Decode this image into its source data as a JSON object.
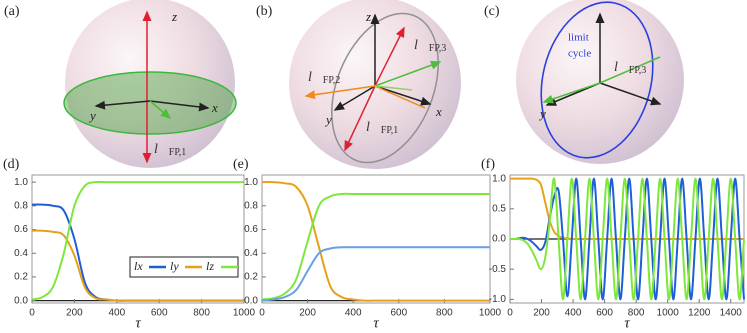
{
  "diagrams": [
    {
      "label": "(a)",
      "axes": {
        "x": "x",
        "y": "y",
        "z": "z"
      },
      "vectors": [
        {
          "symbol": "l⃗",
          "subscript": "FP,1"
        }
      ]
    },
    {
      "label": "(b)",
      "axes": {
        "x": "x",
        "y": "y",
        "z": "z"
      },
      "vectors": [
        {
          "symbol": "l⃗",
          "subscript": "FP,1"
        },
        {
          "symbol": "l⃗",
          "subscript": "FP,2"
        },
        {
          "symbol": "l⃗",
          "subscript": "FP,3"
        }
      ]
    },
    {
      "label": "(c)",
      "axes": {
        "y": "y"
      },
      "annotation": [
        "limit",
        "cycle"
      ],
      "vectors": [
        {
          "symbol": "l⃗",
          "subscript": "FP,3"
        }
      ]
    }
  ],
  "chart_data": [
    {
      "type": "line",
      "panel_label": "(d)",
      "x_label": "τ",
      "x": [
        0,
        50,
        100,
        150,
        200,
        250,
        300,
        350,
        400,
        450,
        500,
        550,
        600,
        650,
        700,
        750,
        800,
        850,
        900,
        950,
        1000
      ],
      "series": [
        {
          "name": "lx",
          "color": "#1f5fd6",
          "values": [
            0.81,
            0.81,
            0.8,
            0.76,
            0.52,
            0.15,
            0.03,
            0.01,
            0,
            0,
            0,
            0,
            0,
            0,
            0,
            0,
            0,
            0,
            0,
            0,
            0
          ]
        },
        {
          "name": "ly",
          "color": "#e8a01a",
          "values": [
            0.59,
            0.59,
            0.58,
            0.55,
            0.38,
            0.11,
            0.02,
            0.01,
            0,
            0,
            0,
            0,
            0,
            0,
            0,
            0,
            0,
            0,
            0,
            0,
            0
          ]
        },
        {
          "name": "lz",
          "color": "#7de83a",
          "values": [
            0.01,
            0.03,
            0.12,
            0.4,
            0.8,
            0.97,
            1,
            1,
            1,
            1,
            1,
            1,
            1,
            1,
            1,
            1,
            1,
            1,
            1,
            1,
            1
          ]
        }
      ],
      "xlim": [
        0,
        1000
      ],
      "xticks": [
        0,
        200,
        400,
        600,
        800,
        1000
      ],
      "ylim": [
        -0.02,
        1.06
      ],
      "yticks": [
        {
          "value": 0,
          "label": "0.0"
        },
        0.2,
        0.4,
        0.6,
        0.8,
        {
          "value": 1,
          "label": "1.0"
        }
      ],
      "legend": "bottom-right"
    },
    {
      "type": "line",
      "panel_label": "(e)",
      "x_label": "τ",
      "x": [
        0,
        50,
        100,
        150,
        200,
        250,
        300,
        350,
        400,
        450,
        500,
        550,
        600,
        650,
        700,
        750,
        800,
        850,
        900,
        950,
        1000
      ],
      "series": [
        {
          "color": "#e8a01a",
          "values": [
            1,
            1,
            0.99,
            0.96,
            0.8,
            0.45,
            0.12,
            0.03,
            0.01,
            0,
            0,
            0,
            0,
            0,
            0,
            0,
            0,
            0,
            0,
            0,
            0
          ]
        },
        {
          "color": "#7de83a",
          "values": [
            0.01,
            0.02,
            0.06,
            0.18,
            0.5,
            0.8,
            0.88,
            0.9,
            0.9,
            0.9,
            0.9,
            0.9,
            0.9,
            0.9,
            0.9,
            0.9,
            0.9,
            0.9,
            0.9,
            0.9,
            0.9
          ]
        },
        {
          "color": "#6a9ee8",
          "values": [
            0,
            0.01,
            0.03,
            0.09,
            0.25,
            0.4,
            0.44,
            0.45,
            0.45,
            0.45,
            0.45,
            0.45,
            0.45,
            0.45,
            0.45,
            0.45,
            0.45,
            0.45,
            0.45,
            0.45,
            0.45
          ]
        }
      ],
      "xlim": [
        0,
        1000
      ],
      "xticks": [
        0,
        200,
        400,
        600,
        800,
        1000
      ],
      "ylim": [
        -0.02,
        1.06
      ],
      "yticks": [
        {
          "value": 0,
          "label": "0.0"
        },
        0.2,
        0.4,
        0.6,
        0.8,
        {
          "value": 1,
          "label": "1.0"
        }
      ]
    },
    {
      "type": "line",
      "panel_label": "(f)",
      "x_label": "τ",
      "x": [
        0,
        28,
        56,
        84,
        112,
        140,
        168,
        196,
        224,
        252,
        280,
        308,
        336,
        364,
        392,
        420,
        448,
        476,
        504,
        532,
        560,
        588,
        616,
        644,
        672,
        700,
        728,
        756,
        784,
        812,
        840,
        868,
        896,
        924,
        952,
        980,
        1008,
        1036,
        1064,
        1092,
        1120,
        1148,
        1176,
        1204,
        1232,
        1260,
        1288,
        1316,
        1344,
        1372,
        1400,
        1428,
        1456,
        1484
      ],
      "series": [
        {
          "color": "#e8a01a",
          "values": [
            1,
            1,
            1,
            1,
            1,
            1,
            0.98,
            0.9,
            0.6,
            0.3,
            0.12,
            0.05,
            0.02,
            0.01,
            0,
            0,
            0,
            0,
            0,
            0,
            0,
            0,
            0,
            0,
            0,
            0,
            0,
            0,
            0,
            0,
            0,
            0,
            0,
            0,
            0,
            0,
            0,
            0,
            0,
            0,
            0,
            0,
            0,
            0,
            0,
            0,
            0,
            0,
            0,
            0,
            0,
            0,
            0,
            0
          ]
        },
        {
          "color": "#1f5fd6",
          "values": [
            0,
            0,
            0.01,
            0.02,
            0,
            -0.05,
            -0.12,
            -0.18,
            -0.05,
            0.35,
            0.7,
            0.8,
            0,
            -0.95,
            0,
            1,
            0,
            -1,
            0,
            1,
            0,
            -1,
            0,
            1,
            0,
            -1,
            0,
            1,
            0,
            -1,
            0,
            1,
            0,
            -1,
            0,
            1,
            0,
            -1,
            0,
            1,
            0,
            -1,
            0,
            1,
            0,
            -1,
            0,
            1,
            0,
            -1,
            0,
            1,
            0,
            -1
          ]
        },
        {
          "color": "#7de83a",
          "values": [
            0,
            0,
            0,
            -0.02,
            -0.08,
            -0.2,
            -0.35,
            -0.5,
            -0.3,
            0.3,
            1,
            0,
            -1,
            0,
            1,
            0,
            -1,
            0,
            1,
            0,
            -1,
            0,
            1,
            0,
            -1,
            0,
            1,
            0,
            -1,
            0,
            1,
            0,
            -1,
            0,
            1,
            0,
            -1,
            0,
            1,
            0,
            -1,
            0,
            1,
            0,
            -1,
            0,
            1,
            0,
            -1,
            0,
            1,
            0,
            -1,
            0
          ]
        }
      ],
      "xlim": [
        0,
        1484
      ],
      "xticks": [
        0,
        200,
        400,
        600,
        800,
        1000,
        1200,
        1400
      ],
      "ylim": [
        -1.06,
        1.06
      ],
      "yticks": [
        {
          "value": -1,
          "label": "-1.0"
        },
        -0.5,
        {
          "value": 0,
          "label": "0.0"
        },
        0.5,
        {
          "value": 1,
          "label": "1.0"
        }
      ]
    }
  ]
}
